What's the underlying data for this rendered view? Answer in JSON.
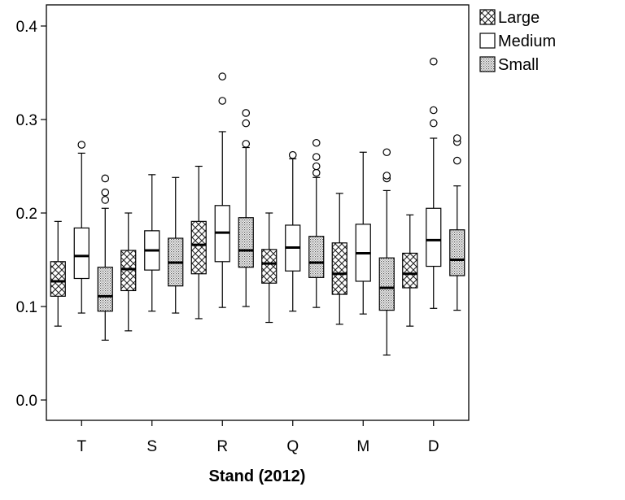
{
  "chart_data": {
    "type": "boxplot",
    "title": "",
    "xlabel": "Stand (2012)",
    "ylabel": "",
    "ylim": [
      0.0,
      0.4
    ],
    "yticks": [
      "0.0",
      "0.1",
      "0.2",
      "0.3",
      "0.4"
    ],
    "categories": [
      "T",
      "S",
      "R",
      "Q",
      "M",
      "D"
    ],
    "legend_position": "top-right-outside",
    "grid": false,
    "series": [
      {
        "name": "Large",
        "pattern": "crosshatch",
        "boxes": [
          {
            "category": "T",
            "whisker_low": 0.079,
            "q1": 0.111,
            "median": 0.127,
            "q3": 0.148,
            "whisker_high": 0.191,
            "outliers": []
          },
          {
            "category": "S",
            "whisker_low": 0.074,
            "q1": 0.117,
            "median": 0.14,
            "q3": 0.16,
            "whisker_high": 0.2,
            "outliers": []
          },
          {
            "category": "R",
            "whisker_low": 0.087,
            "q1": 0.135,
            "median": 0.166,
            "q3": 0.191,
            "whisker_high": 0.25,
            "outliers": []
          },
          {
            "category": "Q",
            "whisker_low": 0.083,
            "q1": 0.125,
            "median": 0.146,
            "q3": 0.161,
            "whisker_high": 0.2,
            "outliers": []
          },
          {
            "category": "M",
            "whisker_low": 0.081,
            "q1": 0.113,
            "median": 0.135,
            "q3": 0.168,
            "whisker_high": 0.221,
            "outliers": []
          },
          {
            "category": "D",
            "whisker_low": 0.079,
            "q1": 0.12,
            "median": 0.135,
            "q3": 0.157,
            "whisker_high": 0.198,
            "outliers": []
          }
        ]
      },
      {
        "name": "Medium",
        "pattern": "plain",
        "boxes": [
          {
            "category": "T",
            "whisker_low": 0.093,
            "q1": 0.13,
            "median": 0.154,
            "q3": 0.184,
            "whisker_high": 0.264,
            "outliers": [
              0.273
            ]
          },
          {
            "category": "S",
            "whisker_low": 0.095,
            "q1": 0.139,
            "median": 0.16,
            "q3": 0.181,
            "whisker_high": 0.241,
            "outliers": []
          },
          {
            "category": "R",
            "whisker_low": 0.099,
            "q1": 0.148,
            "median": 0.179,
            "q3": 0.208,
            "whisker_high": 0.287,
            "outliers": [
              0.32,
              0.346
            ]
          },
          {
            "category": "Q",
            "whisker_low": 0.095,
            "q1": 0.138,
            "median": 0.163,
            "q3": 0.187,
            "whisker_high": 0.258,
            "outliers": [
              0.262
            ]
          },
          {
            "category": "M",
            "whisker_low": 0.092,
            "q1": 0.127,
            "median": 0.157,
            "q3": 0.188,
            "whisker_high": 0.265,
            "outliers": []
          },
          {
            "category": "D",
            "whisker_low": 0.098,
            "q1": 0.143,
            "median": 0.171,
            "q3": 0.205,
            "whisker_high": 0.28,
            "outliers": [
              0.296,
              0.31,
              0.362
            ]
          }
        ]
      },
      {
        "name": "Small",
        "pattern": "dotted",
        "boxes": [
          {
            "category": "T",
            "whisker_low": 0.064,
            "q1": 0.095,
            "median": 0.111,
            "q3": 0.142,
            "whisker_high": 0.205,
            "outliers": [
              0.214,
              0.222,
              0.237
            ]
          },
          {
            "category": "S",
            "whisker_low": 0.093,
            "q1": 0.122,
            "median": 0.147,
            "q3": 0.173,
            "whisker_high": 0.238,
            "outliers": []
          },
          {
            "category": "R",
            "whisker_low": 0.1,
            "q1": 0.142,
            "median": 0.16,
            "q3": 0.195,
            "whisker_high": 0.27,
            "outliers": [
              0.274,
              0.296,
              0.307
            ]
          },
          {
            "category": "Q",
            "whisker_low": 0.099,
            "q1": 0.131,
            "median": 0.147,
            "q3": 0.175,
            "whisker_high": 0.238,
            "outliers": [
              0.243,
              0.25,
              0.26,
              0.275
            ]
          },
          {
            "category": "M",
            "whisker_low": 0.048,
            "q1": 0.096,
            "median": 0.12,
            "q3": 0.152,
            "whisker_high": 0.224,
            "outliers": [
              0.237,
              0.24,
              0.265
            ]
          },
          {
            "category": "D",
            "whisker_low": 0.096,
            "q1": 0.133,
            "median": 0.15,
            "q3": 0.182,
            "whisker_high": 0.229,
            "outliers": [
              0.256,
              0.276,
              0.28
            ]
          }
        ]
      }
    ]
  }
}
